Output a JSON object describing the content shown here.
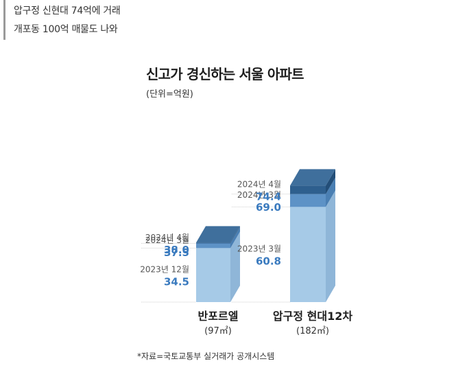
{
  "headline": {
    "line1": "압구정 신현대 74억에 거래",
    "line2": "개포동 100억 매물도 나와"
  },
  "colors": {
    "top": "#2e5f8e",
    "middle": "#5d92c6",
    "base": "#a6cae7",
    "value_text": "#3b7bbf"
  },
  "chart_data": {
    "type": "bar",
    "stacked": true,
    "title": "신고가 경신하는 서울 아파트",
    "unit": "(단위=억원)",
    "ylim": [
      0,
      74.4
    ],
    "categories": [
      {
        "name": "반포르엘",
        "area": "(97㎡)",
        "segments": [
          {
            "date": "2023년 12월",
            "value": 34.5
          },
          {
            "date": "2024년 3월",
            "value": 37.5
          },
          {
            "date": "2024년 4월",
            "value": 38.0
          }
        ]
      },
      {
        "name": "압구정 현대12차",
        "area": "(182㎡)",
        "segments": [
          {
            "date": "2023년 3월",
            "value": 60.8
          },
          {
            "date": "2024년 3월",
            "value": 69.0
          },
          {
            "date": "2024년 4월",
            "value": 74.4
          }
        ]
      }
    ],
    "source": "*자료=국토교통부 실거래가 공개시스템"
  }
}
